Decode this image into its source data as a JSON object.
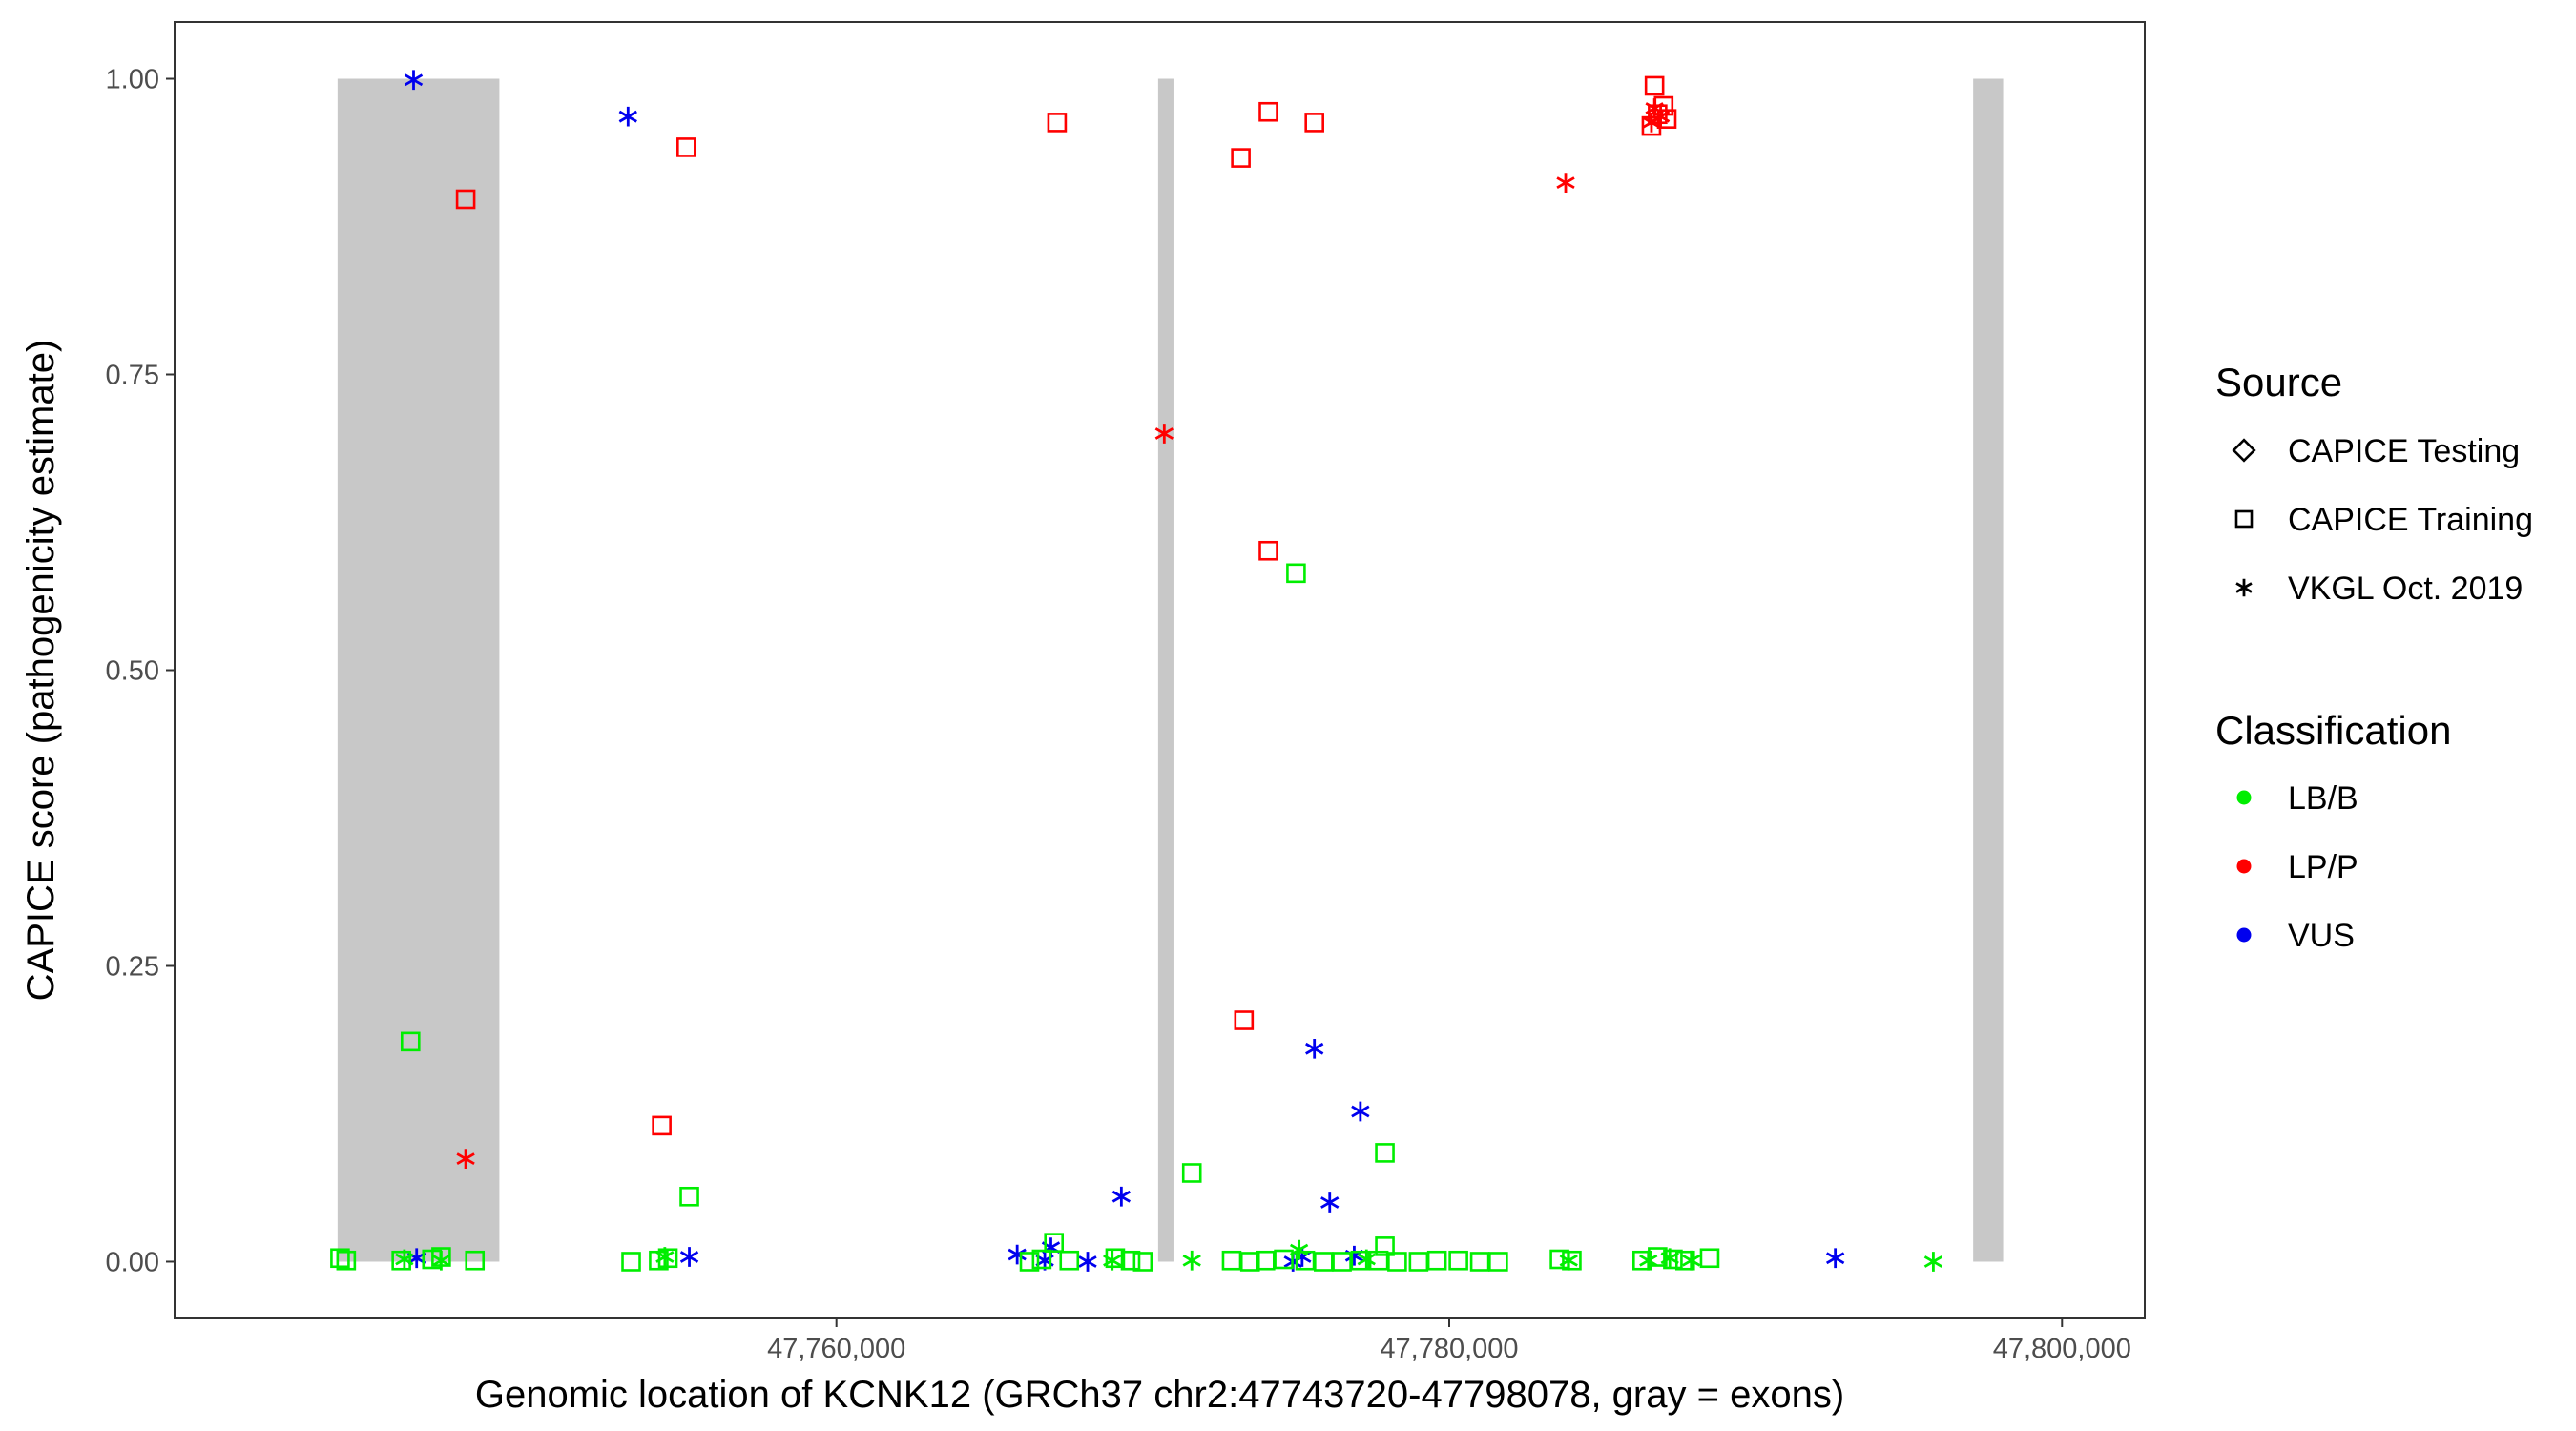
{
  "chart_data": {
    "type": "scatter",
    "title": "",
    "xlabel": "Genomic location of KCNK12 (GRCh37 chr2:47743720-47798078, gray = exons)",
    "ylabel": "CAPICE score (pathogenicity estimate)",
    "xlim": [
      47738400,
      47802700
    ],
    "ylim": [
      -0.048,
      1.048
    ],
    "x_ticks": [
      {
        "value": 47760000,
        "label": "47,760,000"
      },
      {
        "value": 47780000,
        "label": "47,780,000"
      },
      {
        "value": 47800000,
        "label": "47,800,000"
      }
    ],
    "y_ticks": [
      {
        "value": 0,
        "label": "0.00"
      },
      {
        "value": 0.25,
        "label": "0.25"
      },
      {
        "value": 0.5,
        "label": "0.50"
      },
      {
        "value": 0.75,
        "label": "0.75"
      },
      {
        "value": 1,
        "label": "1.00"
      }
    ],
    "grid": false,
    "legend_position": "right",
    "exon_color": "#c8c8c8",
    "exons": [
      {
        "start": 47743720,
        "end": 47749000
      },
      {
        "start": 47770500,
        "end": 47771000
      },
      {
        "start": 47797100,
        "end": 47798078
      }
    ],
    "legend": {
      "source": {
        "title": "Source",
        "entries": [
          {
            "shape": "diamond",
            "label": "CAPICE Testing"
          },
          {
            "shape": "square",
            "label": "CAPICE Training"
          },
          {
            "shape": "star",
            "label": "VKGL Oct. 2019"
          }
        ]
      },
      "classification": {
        "title": "Classification",
        "entries": [
          {
            "key": "LB/B",
            "label": "LB/B",
            "color": "#00ee00"
          },
          {
            "key": "LP/P",
            "label": "LP/P",
            "color": "#ff0000"
          },
          {
            "key": "VUS",
            "label": "VUS",
            "color": "#0000ee"
          }
        ]
      }
    },
    "series": [
      {
        "classification": "LP/P",
        "source": "CAPICE Training",
        "points": [
          [
            47747900,
            0.898
          ],
          [
            47755100,
            0.942
          ],
          [
            47767200,
            0.963
          ],
          [
            47773200,
            0.933
          ],
          [
            47774100,
            0.972
          ],
          [
            47775600,
            0.963
          ],
          [
            47786700,
            0.994
          ],
          [
            47786600,
            0.96
          ],
          [
            47787000,
            0.977
          ],
          [
            47787100,
            0.966
          ],
          [
            47786800,
            0.97
          ],
          [
            47773300,
            0.204
          ],
          [
            47774100,
            0.601
          ],
          [
            47754300,
            0.115
          ]
        ]
      },
      {
        "classification": "LP/P",
        "source": "VKGL Oct. 2019",
        "points": [
          [
            47770700,
            0.7
          ],
          [
            47783800,
            0.912
          ],
          [
            47786700,
            0.975
          ],
          [
            47786900,
            0.968
          ],
          [
            47786600,
            0.963
          ],
          [
            47747900,
            0.087
          ]
        ]
      },
      {
        "classification": "VUS",
        "source": "VKGL Oct. 2019",
        "points": [
          [
            47746200,
            0.999
          ],
          [
            47753200,
            0.968
          ],
          [
            47775600,
            0.18
          ],
          [
            47777100,
            0.127
          ],
          [
            47776100,
            0.05
          ],
          [
            47769300,
            0.055
          ],
          [
            47746300,
            0.003
          ],
          [
            47755200,
            0.004
          ],
          [
            47765900,
            0.006
          ],
          [
            47766800,
            0.001
          ],
          [
            47767000,
            0.012
          ],
          [
            47768200,
            0.0
          ],
          [
            47774900,
            0.0
          ],
          [
            47775200,
            0.004
          ],
          [
            47776900,
            0.005
          ],
          [
            47792600,
            0.003
          ]
        ]
      },
      {
        "classification": "LB/B",
        "source": "CAPICE Training",
        "points": [
          [
            47746100,
            0.186
          ],
          [
            47775000,
            0.582
          ],
          [
            47771600,
            0.075
          ],
          [
            47777900,
            0.092
          ],
          [
            47755200,
            0.055
          ],
          [
            47777900,
            0.013
          ],
          [
            47767100,
            0.016
          ],
          [
            47743800,
            0.003
          ],
          [
            47744000,
            0.001
          ],
          [
            47745800,
            0.001
          ],
          [
            47746800,
            0.002
          ],
          [
            47747100,
            0.004
          ],
          [
            47748200,
            0.001
          ],
          [
            47753300,
            0.0
          ],
          [
            47754200,
            0.001
          ],
          [
            47754500,
            0.003
          ],
          [
            47766300,
            0.0
          ],
          [
            47766700,
            0.002
          ],
          [
            47767600,
            0.001
          ],
          [
            47769100,
            0.003
          ],
          [
            47769600,
            0.001
          ],
          [
            47770000,
            0.0
          ],
          [
            47772900,
            0.001
          ],
          [
            47773500,
            0.0
          ],
          [
            47774000,
            0.001
          ],
          [
            47774600,
            0.002
          ],
          [
            47775300,
            0.001
          ],
          [
            47775900,
            0.0
          ],
          [
            47776500,
            0.0
          ],
          [
            47777100,
            0.001
          ],
          [
            47777700,
            0.001
          ],
          [
            47778300,
            0.0
          ],
          [
            47779000,
            0.0
          ],
          [
            47779600,
            0.001
          ],
          [
            47780300,
            0.001
          ],
          [
            47781000,
            0.0
          ],
          [
            47781600,
            0.0
          ],
          [
            47783600,
            0.002
          ],
          [
            47784000,
            0.001
          ],
          [
            47786300,
            0.001
          ],
          [
            47786800,
            0.004
          ],
          [
            47787300,
            0.002
          ],
          [
            47787700,
            0.001
          ],
          [
            47788500,
            0.003
          ]
        ]
      },
      {
        "classification": "LB/B",
        "source": "VKGL Oct. 2019",
        "points": [
          [
            47745900,
            0.002
          ],
          [
            47747100,
            0.001
          ],
          [
            47754400,
            0.004
          ],
          [
            47769000,
            0.001
          ],
          [
            47771600,
            0.001
          ],
          [
            47775100,
            0.01
          ],
          [
            47777300,
            0.002
          ],
          [
            47783900,
            0.001
          ],
          [
            47786500,
            0.001
          ],
          [
            47787200,
            0.003
          ],
          [
            47787900,
            0.001
          ],
          [
            47795800,
            0.0
          ]
        ]
      }
    ]
  }
}
